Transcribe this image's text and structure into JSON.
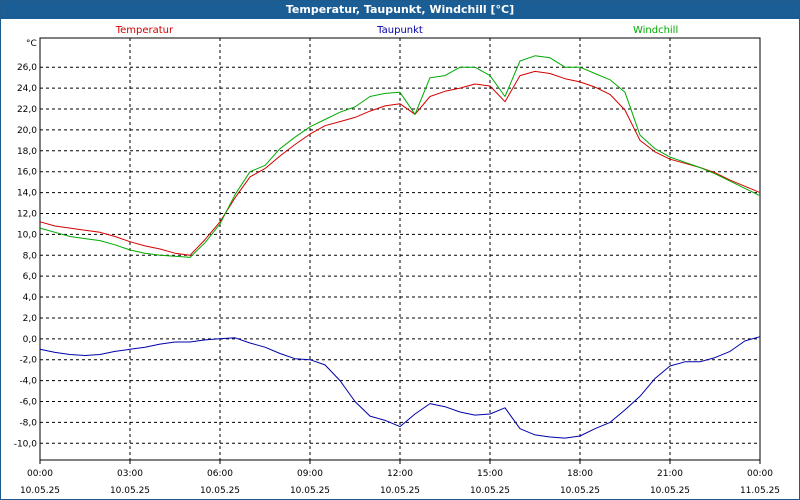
{
  "window": {
    "title": "Temperatur, Taupunkt, Windchill [°C]"
  },
  "chart_data": {
    "type": "line",
    "title": "Temperatur, Taupunkt, Windchill [°C]",
    "ylabel": "°C",
    "xlabel": "",
    "ylim": [
      -11.6,
      28.8
    ],
    "xlim": [
      0,
      24
    ],
    "y_ticks": [
      "-10,0",
      "-8,0",
      "-6,0",
      "-4,0",
      "-2,0",
      "0,0",
      "2,0",
      "4,0",
      "6,0",
      "8,0",
      "10,0",
      "12,0",
      "14,0",
      "16,0",
      "18,0",
      "20,0",
      "22,0",
      "24,0",
      "26,0"
    ],
    "y_tick_values": [
      -10,
      -8,
      -6,
      -4,
      -2,
      0,
      2,
      4,
      6,
      8,
      10,
      12,
      14,
      16,
      18,
      20,
      22,
      24,
      26
    ],
    "x_ticks": [
      {
        "time": "00:00",
        "date": "10.05.25",
        "hour": 0
      },
      {
        "time": "03:00",
        "date": "10.05.25",
        "hour": 3
      },
      {
        "time": "06:00",
        "date": "10.05.25",
        "hour": 6
      },
      {
        "time": "09:00",
        "date": "10.05.25",
        "hour": 9
      },
      {
        "time": "12:00",
        "date": "10.05.25",
        "hour": 12
      },
      {
        "time": "15:00",
        "date": "10.05.25",
        "hour": 15
      },
      {
        "time": "18:00",
        "date": "10.05.25",
        "hour": 18
      },
      {
        "time": "21:00",
        "date": "10.05.25",
        "hour": 21
      },
      {
        "time": "00:00",
        "date": "11.05.25",
        "hour": 24
      }
    ],
    "grid": true,
    "legend_position": "top",
    "x": [
      0,
      0.5,
      1,
      1.5,
      2,
      2.5,
      3,
      3.5,
      4,
      4.5,
      5,
      5.5,
      6,
      6.5,
      7,
      7.5,
      8,
      8.5,
      9,
      9.5,
      10,
      10.5,
      11,
      11.5,
      12,
      12.5,
      13,
      13.5,
      14,
      14.5,
      15,
      15.5,
      16,
      16.5,
      17,
      17.5,
      18,
      18.5,
      19,
      19.5,
      20,
      20.5,
      21,
      21.5,
      22,
      22.5,
      23,
      23.5,
      24
    ],
    "series": [
      {
        "name": "Temperatur",
        "color": "#d40000",
        "values": [
          11.2,
          10.8,
          10.6,
          10.4,
          10.2,
          9.8,
          9.3,
          8.9,
          8.6,
          8.2,
          8.0,
          9.5,
          11.2,
          13.5,
          15.5,
          16.3,
          17.5,
          18.6,
          19.6,
          20.4,
          20.8,
          21.2,
          21.8,
          22.3,
          22.5,
          21.5,
          23.2,
          23.7,
          24.0,
          24.4,
          24.2,
          22.7,
          25.2,
          25.6,
          25.4,
          24.9,
          24.6,
          24.1,
          23.4,
          21.9,
          19.0,
          17.9,
          17.2,
          16.8,
          16.4,
          15.9,
          15.2,
          14.6,
          14.0
        ]
      },
      {
        "name": "Taupunkt",
        "color": "#0000aa",
        "values": [
          -1.0,
          -1.3,
          -1.5,
          -1.6,
          -1.5,
          -1.2,
          -1.0,
          -0.8,
          -0.5,
          -0.3,
          -0.3,
          -0.1,
          0.0,
          0.1,
          -0.4,
          -0.8,
          -1.4,
          -1.9,
          -2.0,
          -2.5,
          -4.0,
          -6.0,
          -7.4,
          -7.8,
          -8.4,
          -7.2,
          -6.2,
          -6.5,
          -7.0,
          -7.3,
          -7.2,
          -6.6,
          -8.6,
          -9.2,
          -9.4,
          -9.5,
          -9.3,
          -8.6,
          -8.0,
          -6.8,
          -5.5,
          -3.8,
          -2.6,
          -2.2,
          -2.2,
          -1.8,
          -1.2,
          -0.2,
          0.2
        ]
      },
      {
        "name": "Windchill",
        "color": "#00aa00",
        "values": [
          10.6,
          10.2,
          9.8,
          9.6,
          9.4,
          9.0,
          8.5,
          8.2,
          8.0,
          7.9,
          7.8,
          9.2,
          11.0,
          13.8,
          16.0,
          16.6,
          18.2,
          19.3,
          20.3,
          21.0,
          21.7,
          22.2,
          23.2,
          23.5,
          23.6,
          21.5,
          25.0,
          25.2,
          26.0,
          26.0,
          25.2,
          23.2,
          26.6,
          27.1,
          26.9,
          26.0,
          26.0,
          25.4,
          24.8,
          23.6,
          19.5,
          18.2,
          17.4,
          16.9,
          16.4,
          15.8,
          15.1,
          14.4,
          13.7
        ]
      }
    ]
  }
}
